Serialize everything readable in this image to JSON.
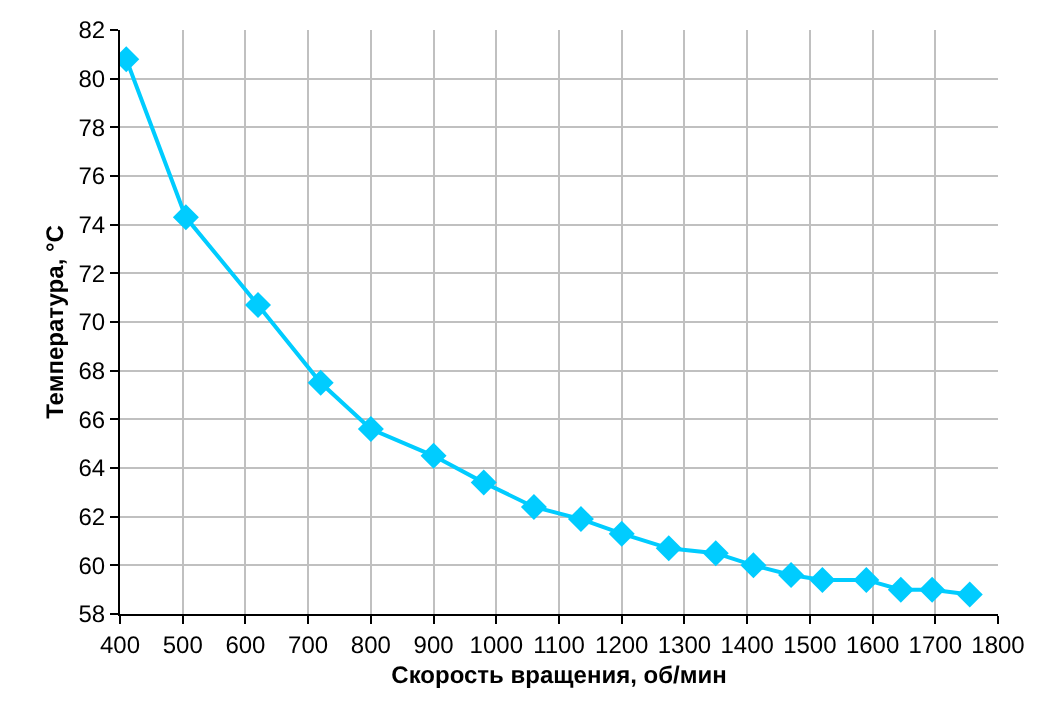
{
  "chart_data": {
    "type": "line",
    "xlabel": "Скорость вращения, об/мин",
    "ylabel": "Температура, °С",
    "x": [
      410,
      505,
      620,
      720,
      800,
      900,
      980,
      1060,
      1135,
      1200,
      1275,
      1350,
      1410,
      1470,
      1520,
      1590,
      1645,
      1695,
      1755
    ],
    "series": [
      {
        "color": "#00ccff",
        "values": [
          80.8,
          74.3,
          70.7,
          67.5,
          65.6,
          64.5,
          63.4,
          62.4,
          61.9,
          61.3,
          60.7,
          60.5,
          60.0,
          59.6,
          59.4,
          59.4,
          59.0,
          59.0,
          58.8
        ]
      }
    ],
    "xlim": [
      400,
      1800
    ],
    "xticks": [
      400,
      500,
      600,
      700,
      800,
      900,
      1000,
      1100,
      1200,
      1300,
      1400,
      1500,
      1600,
      1700,
      1800
    ],
    "ylim": [
      58,
      82
    ],
    "yticks": [
      58,
      60,
      62,
      64,
      66,
      68,
      70,
      72,
      74,
      76,
      78,
      80,
      82
    ],
    "grid": true,
    "marker": "diamond",
    "line_style": "solid"
  }
}
